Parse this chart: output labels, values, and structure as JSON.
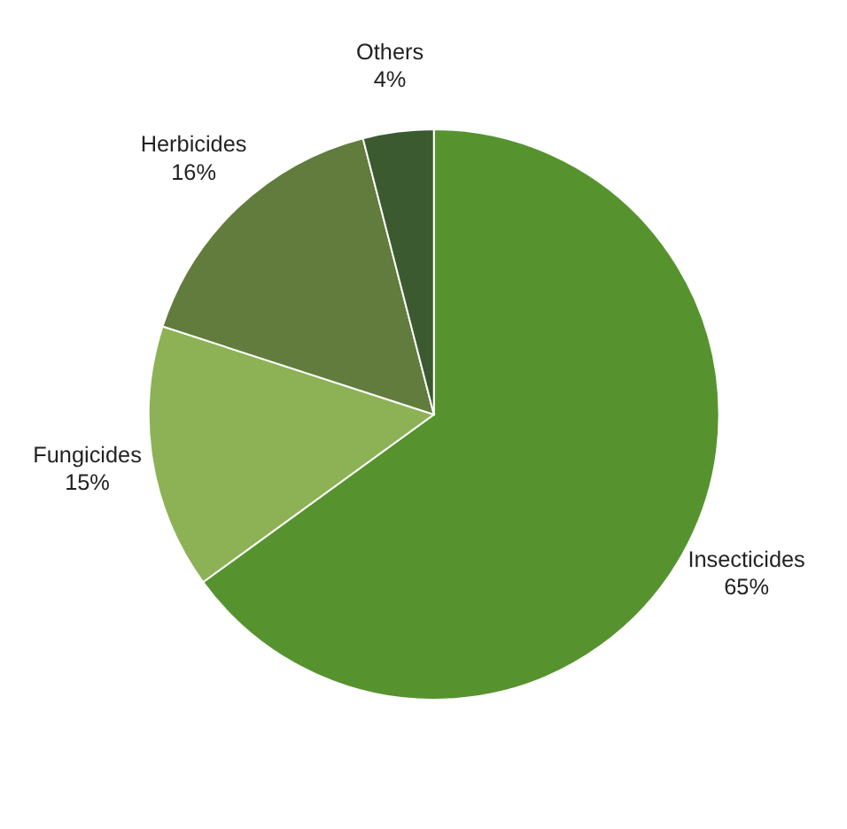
{
  "chart_data": {
    "type": "pie",
    "categories": [
      "Insecticides",
      "Fungicides",
      "Herbicides",
      "Others"
    ],
    "values": [
      65,
      15,
      16,
      4
    ],
    "colors": [
      "#56932f",
      "#8db255",
      "#617c3c",
      "#3b5a30"
    ],
    "value_labels": [
      "65%",
      "15%",
      "16%",
      "4%"
    ],
    "legend": false
  }
}
